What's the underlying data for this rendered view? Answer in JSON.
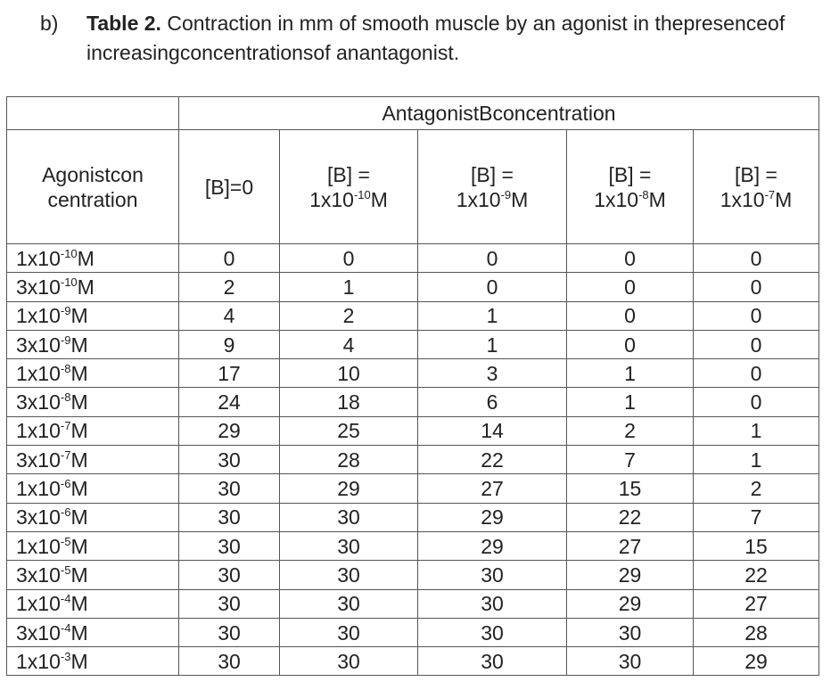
{
  "caption": {
    "label": "b)",
    "title": "Table 2.",
    "text": "Contraction in mm of smooth muscle by an agonist in thepresenceof increasingconcentrationsof anantagonist."
  },
  "table": {
    "group_header": "AntagonistBconcentration",
    "corner_header": [
      "Agonistcon",
      "centration"
    ],
    "columns": [
      {
        "text": "[B]=0"
      },
      {
        "prefix": "[B] =",
        "base": "1x10",
        "exponent": "-10",
        "unit": "M"
      },
      {
        "prefix": "[B] =",
        "base": "1x10",
        "exponent": "-9",
        "unit": "M"
      },
      {
        "prefix": "[B] =",
        "base": "1x10",
        "exponent": "-8",
        "unit": "M"
      },
      {
        "prefix": "[B] =",
        "base": "1x10",
        "exponent": "-7",
        "unit": "M"
      }
    ],
    "rows": [
      {
        "agonist": {
          "base": "1x10",
          "exponent": "-10",
          "unit": "M"
        },
        "values": [
          0,
          0,
          0,
          0,
          0
        ]
      },
      {
        "agonist": {
          "base": "3x10",
          "exponent": "-10",
          "unit": "M"
        },
        "values": [
          2,
          1,
          0,
          0,
          0
        ]
      },
      {
        "agonist": {
          "base": "1x10",
          "exponent": "-9",
          "unit": "M"
        },
        "values": [
          4,
          2,
          1,
          0,
          0
        ]
      },
      {
        "agonist": {
          "base": "3x10",
          "exponent": "-9",
          "unit": "M"
        },
        "values": [
          9,
          4,
          1,
          0,
          0
        ]
      },
      {
        "agonist": {
          "base": "1x10",
          "exponent": "-8",
          "unit": "M"
        },
        "values": [
          17,
          10,
          3,
          1,
          0
        ]
      },
      {
        "agonist": {
          "base": "3x10",
          "exponent": "-8",
          "unit": "M"
        },
        "values": [
          24,
          18,
          6,
          1,
          0
        ]
      },
      {
        "agonist": {
          "base": "1x10",
          "exponent": "-7",
          "unit": "M"
        },
        "values": [
          29,
          25,
          14,
          2,
          1
        ]
      },
      {
        "agonist": {
          "base": "3x10",
          "exponent": "-7",
          "unit": "M"
        },
        "values": [
          30,
          28,
          22,
          7,
          1
        ]
      },
      {
        "agonist": {
          "base": "1x10",
          "exponent": "-6",
          "unit": "M"
        },
        "values": [
          30,
          29,
          27,
          15,
          2
        ]
      },
      {
        "agonist": {
          "base": "3x10",
          "exponent": "-6",
          "unit": "M"
        },
        "values": [
          30,
          30,
          29,
          22,
          7
        ]
      },
      {
        "agonist": {
          "base": "1x10",
          "exponent": "-5",
          "unit": "M"
        },
        "values": [
          30,
          30,
          29,
          27,
          15
        ]
      },
      {
        "agonist": {
          "base": "3x10",
          "exponent": "-5",
          "unit": "M"
        },
        "values": [
          30,
          30,
          30,
          29,
          22
        ]
      },
      {
        "agonist": {
          "base": "1x10",
          "exponent": "-4",
          "unit": "M"
        },
        "values": [
          30,
          30,
          30,
          29,
          27
        ]
      },
      {
        "agonist": {
          "base": "3x10",
          "exponent": "-4",
          "unit": "M"
        },
        "values": [
          30,
          30,
          30,
          30,
          28
        ]
      },
      {
        "agonist": {
          "base": "1x10",
          "exponent": "-3",
          "unit": "M"
        },
        "values": [
          30,
          30,
          30,
          30,
          29
        ]
      }
    ]
  }
}
